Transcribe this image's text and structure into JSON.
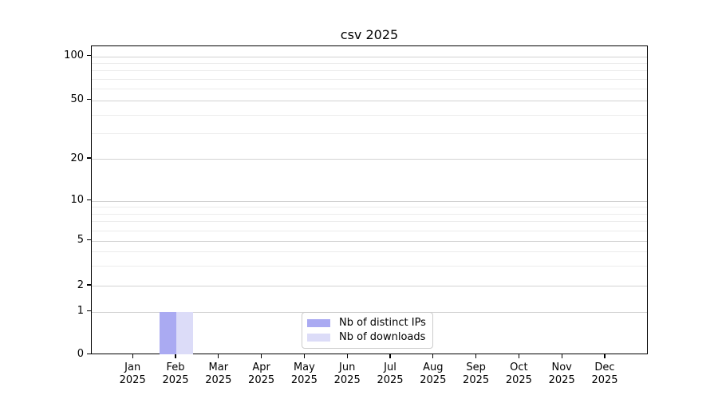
{
  "chart_data": {
    "type": "bar",
    "title": "csv 2025",
    "categories": [
      "Jan 2025",
      "Feb 2025",
      "Mar 2025",
      "Apr 2025",
      "May 2025",
      "Jun 2025",
      "Jul 2025",
      "Aug 2025",
      "Sep 2025",
      "Oct 2025",
      "Nov 2025",
      "Dec 2025"
    ],
    "series": [
      {
        "name": "Nb of distinct IPs",
        "color": "#aaaaf2",
        "values": [
          0,
          1,
          0,
          0,
          0,
          0,
          0,
          0,
          0,
          0,
          0,
          0
        ]
      },
      {
        "name": "Nb of downloads",
        "color": "#dcdcf8",
        "values": [
          0,
          1,
          0,
          0,
          0,
          0,
          0,
          0,
          0,
          0,
          0,
          0
        ]
      }
    ],
    "yticks": [
      0,
      1,
      2,
      5,
      10,
      20,
      50,
      100
    ],
    "ylim": [
      0,
      120
    ],
    "yscale": "symlog",
    "xlabel": "",
    "ylabel": "",
    "grid": "horizontal major and log-minor gridlines",
    "legend_position": "lower center inside plot",
    "colors": {
      "major_grid": "#d2d2d2",
      "minor_grid": "#ececec",
      "spine": "#000000",
      "legend_border": "#cccccc"
    }
  }
}
